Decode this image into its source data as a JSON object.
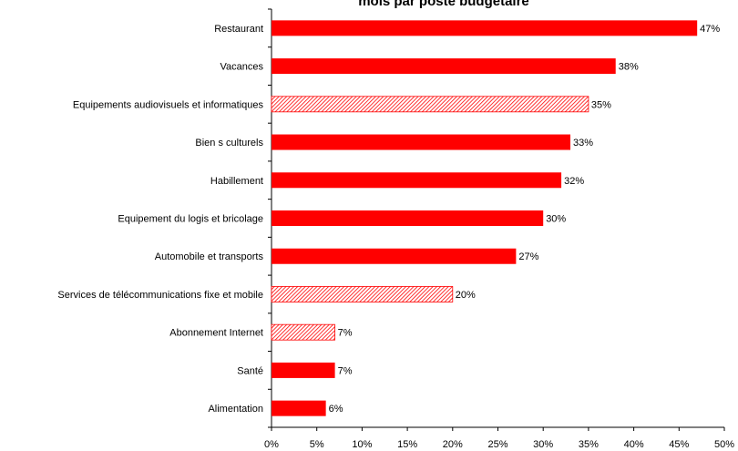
{
  "chart_data": {
    "type": "hbar",
    "title": "mois par poste budgétaire",
    "categories": [
      "Restaurant",
      "Vacances",
      "Equipements audiovisuels et informatiques",
      "Bien s culturels",
      "Habillement",
      "Equipement du logis et bricolage",
      "Automobile et transports",
      "Services de télécommunications fixe et mobile",
      "Abonnement Internet",
      "Santé",
      "Alimentation"
    ],
    "values": [
      47,
      38,
      35,
      33,
      32,
      30,
      27,
      20,
      7,
      7,
      6
    ],
    "value_labels": [
      "47%",
      "38%",
      "35%",
      "33%",
      "32%",
      "30%",
      "27%",
      "20%",
      "7%",
      "7%",
      "6%"
    ],
    "hatched": [
      false,
      false,
      true,
      false,
      false,
      false,
      false,
      true,
      true,
      false,
      false
    ],
    "color": "#ff0000",
    "xlim": [
      0,
      50
    ],
    "xticks": [
      {
        "value": 0,
        "label": "0%"
      },
      {
        "value": 5,
        "label": "5%"
      },
      {
        "value": 10,
        "label": "10%"
      },
      {
        "value": 15,
        "label": "15%"
      },
      {
        "value": 20,
        "label": "20%"
      },
      {
        "value": 25,
        "label": "25%"
      },
      {
        "value": 30,
        "label": "30%"
      },
      {
        "value": 35,
        "label": "35%"
      },
      {
        "value": 40,
        "label": "40%"
      },
      {
        "value": 45,
        "label": "45%"
      },
      {
        "value": 50,
        "label": "50%"
      }
    ]
  }
}
